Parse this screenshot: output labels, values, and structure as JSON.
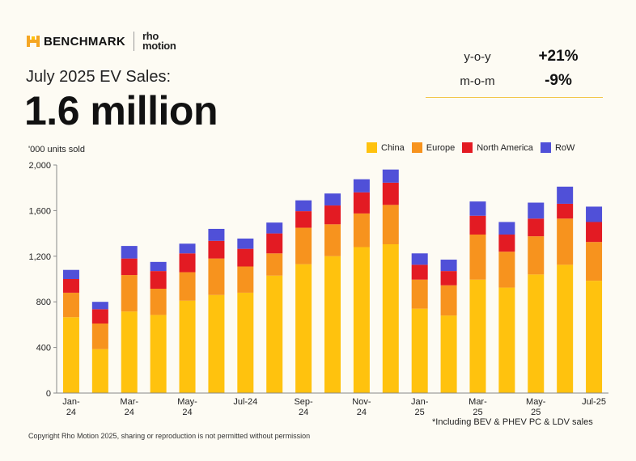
{
  "brand": {
    "benchmark": "BENCHMARK",
    "rho_line1": "rho",
    "rho_line2": "motion"
  },
  "subtitle": "July 2025 EV Sales:",
  "headline": "1.6 million",
  "stats": [
    {
      "label": "y-o-y",
      "value": "+21%"
    },
    {
      "label": "m-o-m",
      "value": "-9%"
    }
  ],
  "footnote": "*Including BEV & PHEV PC & LDV sales",
  "copyright": "Copyright Rho Motion 2025, sharing or reproduction is not permitted without permission",
  "chart_data": {
    "type": "bar",
    "stacked": true,
    "title": "",
    "xlabel": "",
    "ylabel": "'000 units sold",
    "ylim": [
      0,
      2000
    ],
    "yticks": [
      0,
      400,
      800,
      1200,
      1600,
      2000
    ],
    "ytick_labels": [
      "0",
      "400",
      "800",
      "1,200",
      "1,600",
      "2,000"
    ],
    "categories": [
      "Jan-24",
      "Feb-24",
      "Mar-24",
      "Apr-24",
      "May-24",
      "Jun-24",
      "Jul-24",
      "Aug-24",
      "Sep-24",
      "Oct-24",
      "Nov-24",
      "Dec-24",
      "Jan-25",
      "Feb-25",
      "Mar-25",
      "Apr-25",
      "May-25",
      "Jun-25",
      "Jul-25"
    ],
    "xtick_labels": [
      {
        "index": 0,
        "line1": "Jan-",
        "line2": "24"
      },
      {
        "index": 2,
        "line1": "Mar-",
        "line2": "24"
      },
      {
        "index": 4,
        "line1": "May-",
        "line2": "24"
      },
      {
        "index": 6,
        "line1": "Jul-24",
        "line2": ""
      },
      {
        "index": 8,
        "line1": "Sep-",
        "line2": "24"
      },
      {
        "index": 10,
        "line1": "Nov-",
        "line2": "24"
      },
      {
        "index": 12,
        "line1": "Jan-",
        "line2": "25"
      },
      {
        "index": 14,
        "line1": "Mar-",
        "line2": "25"
      },
      {
        "index": 16,
        "line1": "May-",
        "line2": "25"
      },
      {
        "index": 18,
        "line1": "Jul-25",
        "line2": ""
      }
    ],
    "legend_position": "top-right",
    "series": [
      {
        "name": "China",
        "color": "#ffc20e",
        "values": [
          665,
          385,
          715,
          685,
          810,
          860,
          880,
          1030,
          1130,
          1200,
          1280,
          1305,
          740,
          680,
          995,
          925,
          1040,
          1125,
          985
        ]
      },
      {
        "name": "Europe",
        "color": "#f7931e",
        "values": [
          215,
          225,
          320,
          230,
          250,
          320,
          230,
          195,
          320,
          280,
          295,
          345,
          255,
          265,
          395,
          315,
          335,
          405,
          340
        ]
      },
      {
        "name": "North America",
        "color": "#e31b23",
        "values": [
          120,
          125,
          145,
          155,
          165,
          155,
          155,
          175,
          145,
          165,
          185,
          195,
          130,
          125,
          165,
          150,
          155,
          130,
          175
        ]
      },
      {
        "name": "RoW",
        "color": "#5050d8",
        "values": [
          80,
          65,
          110,
          80,
          85,
          105,
          90,
          95,
          95,
          105,
          115,
          115,
          100,
          100,
          125,
          110,
          140,
          150,
          135
        ]
      }
    ]
  }
}
